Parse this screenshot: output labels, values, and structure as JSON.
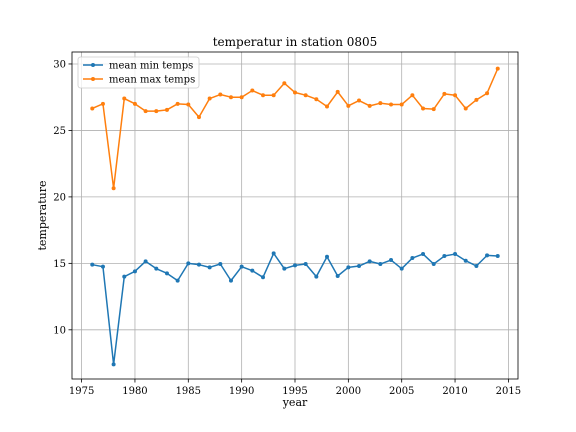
{
  "chart_data": {
    "type": "line",
    "title": "temperatur in station 0805",
    "xlabel": "year",
    "ylabel": "temperature",
    "xlim": [
      1974.1,
      2015.9
    ],
    "ylim": [
      6.3,
      30.9
    ],
    "xticks": [
      1975,
      1980,
      1985,
      1990,
      1995,
      2000,
      2005,
      2010,
      2015
    ],
    "yticks": [
      10,
      15,
      20,
      25,
      30
    ],
    "grid": true,
    "legend_position": "top-left",
    "x": [
      1976,
      1977,
      1978,
      1979,
      1980,
      1981,
      1982,
      1983,
      1984,
      1985,
      1986,
      1987,
      1988,
      1989,
      1990,
      1991,
      1992,
      1993,
      1994,
      1995,
      1996,
      1997,
      1998,
      1999,
      2000,
      2001,
      2002,
      2003,
      2004,
      2005,
      2006,
      2007,
      2008,
      2009,
      2010,
      2011,
      2012,
      2013,
      2014
    ],
    "series": [
      {
        "name": "mean min temps",
        "color": "#1f77b4",
        "values": [
          14.9,
          14.75,
          7.4,
          14.0,
          14.4,
          15.15,
          14.6,
          14.25,
          13.7,
          15.0,
          14.9,
          14.7,
          14.95,
          13.7,
          14.75,
          14.45,
          13.95,
          15.75,
          14.6,
          14.85,
          14.95,
          14.0,
          15.5,
          14.05,
          14.7,
          14.8,
          15.15,
          14.95,
          15.25,
          14.6,
          15.4,
          15.7,
          14.95,
          15.55,
          15.7,
          15.2,
          14.8,
          15.6,
          15.55
        ]
      },
      {
        "name": "mean max temps",
        "color": "#ff7f0e",
        "values": [
          26.65,
          27.0,
          20.65,
          27.4,
          27.0,
          26.45,
          26.45,
          26.55,
          27.0,
          26.95,
          26.0,
          27.4,
          27.7,
          27.5,
          27.5,
          28.0,
          27.65,
          27.65,
          28.55,
          27.85,
          27.65,
          27.35,
          26.8,
          27.9,
          26.85,
          27.25,
          26.85,
          27.05,
          26.95,
          26.95,
          27.65,
          26.65,
          26.6,
          27.75,
          27.65,
          26.65,
          27.3,
          27.8,
          29.65
        ]
      }
    ]
  }
}
